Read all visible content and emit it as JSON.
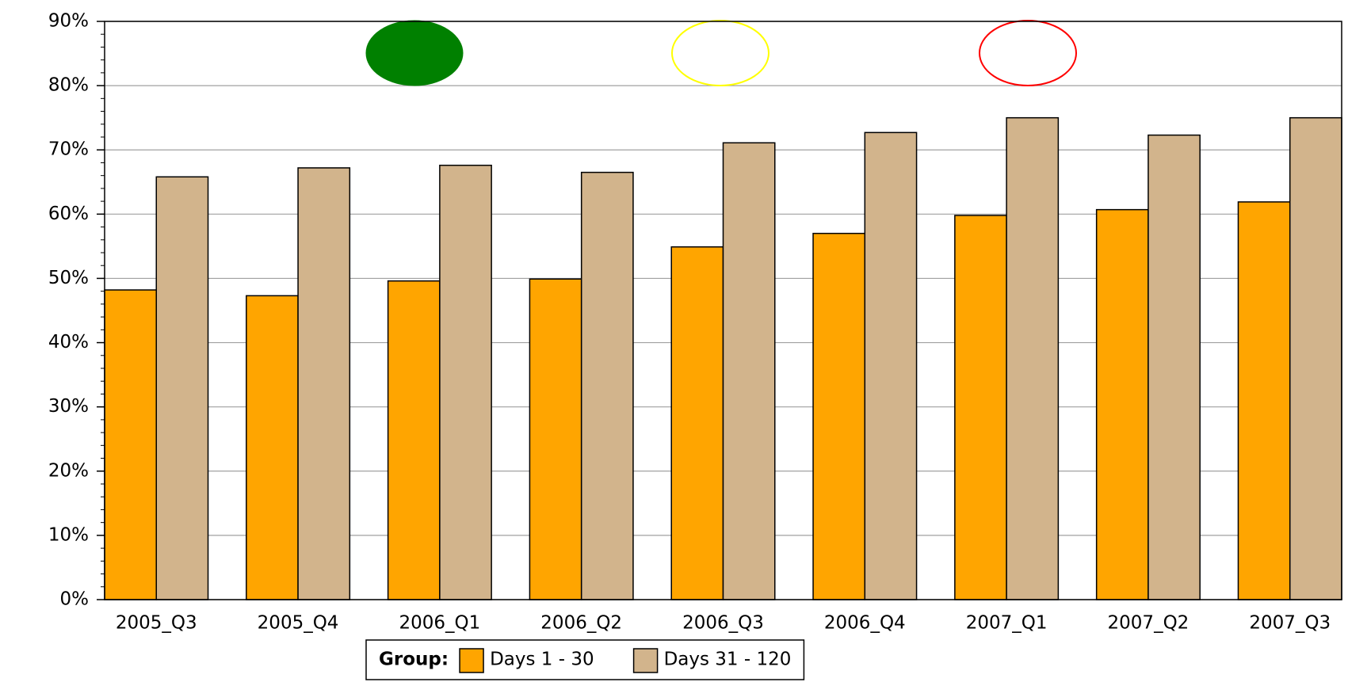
{
  "chart_data": {
    "type": "bar",
    "categories": [
      "2005_Q3",
      "2005_Q4",
      "2006_Q1",
      "2006_Q2",
      "2006_Q3",
      "2006_Q4",
      "2007_Q1",
      "2007_Q2",
      "2007_Q3"
    ],
    "series": [
      {
        "name": "Days 1 - 30",
        "color": "#ffa500",
        "values": [
          48.2,
          47.3,
          49.6,
          49.9,
          54.9,
          57.0,
          59.8,
          60.7,
          61.9
        ]
      },
      {
        "name": "Days 31 - 120",
        "color": "#d2b48c",
        "values": [
          65.8,
          67.2,
          67.6,
          66.5,
          71.1,
          72.7,
          75.0,
          72.3,
          75.0
        ]
      }
    ],
    "legend_title": "Group:",
    "ylim": [
      0,
      90
    ],
    "yticks": [
      {
        "value": 0,
        "label": "0%"
      },
      {
        "value": 10,
        "label": "10%"
      },
      {
        "value": 20,
        "label": "20%"
      },
      {
        "value": 30,
        "label": "30%"
      },
      {
        "value": 40,
        "label": "40%"
      },
      {
        "value": 50,
        "label": "50%"
      },
      {
        "value": 60,
        "label": "60%"
      },
      {
        "value": 70,
        "label": "70%"
      },
      {
        "value": 80,
        "label": "80%"
      },
      {
        "value": 90,
        "label": "90%"
      }
    ],
    "grid": true
  }
}
